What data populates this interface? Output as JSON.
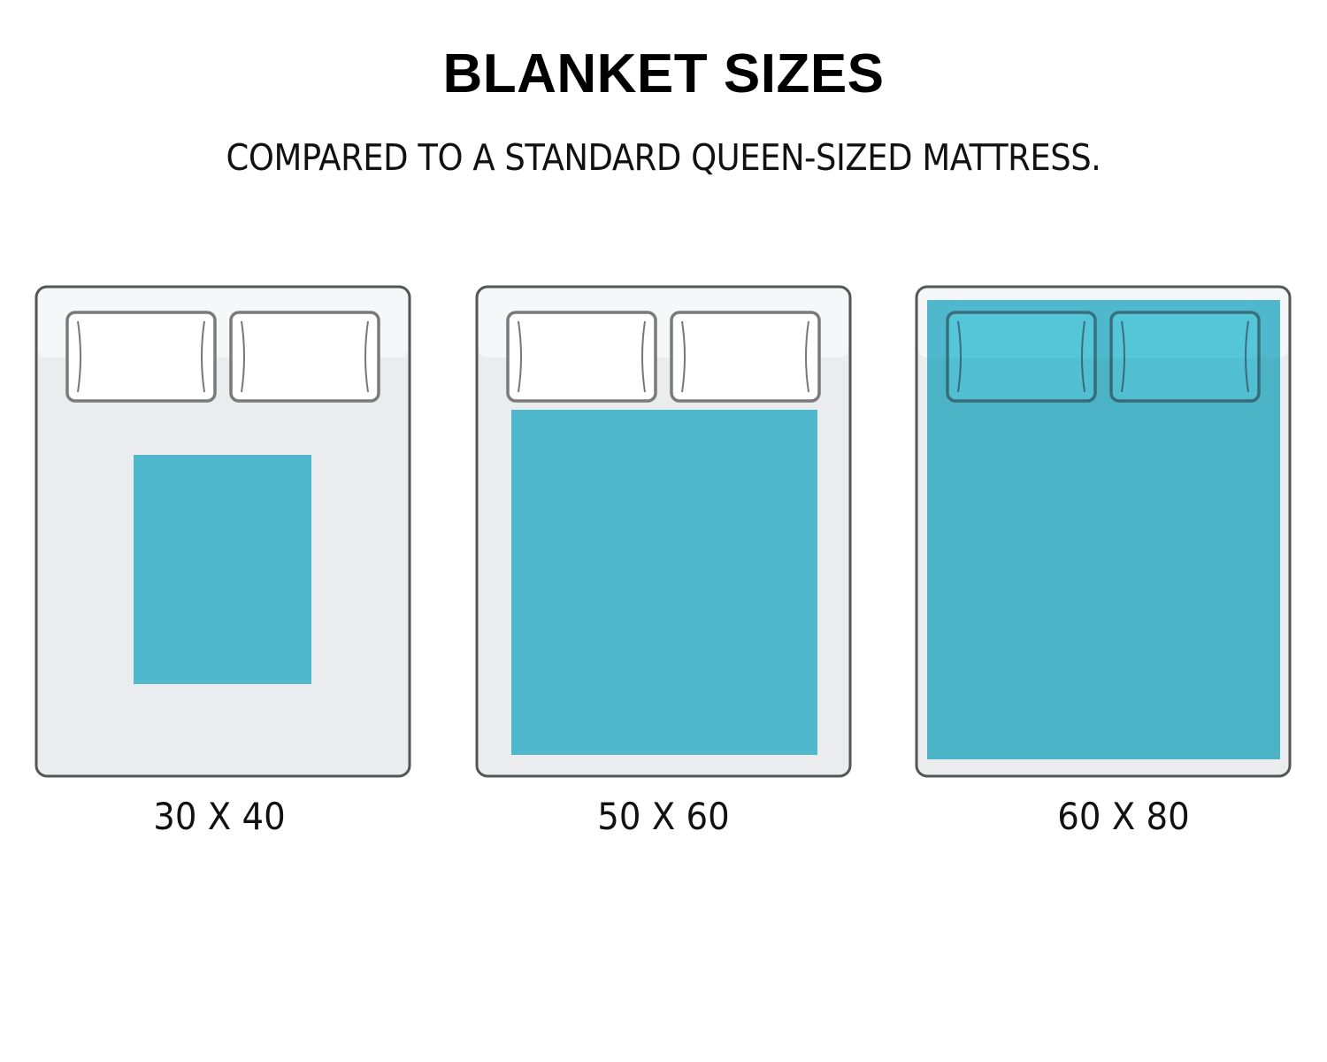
{
  "title": "BLANKET SIZES",
  "subtitle": "COMPARED TO A STANDARD QUEEN-SIZED MATTRESS.",
  "colors": {
    "blanket": "#4fb8cc",
    "pillow_on_blanket": "#55c5d8",
    "mattress": "#ebecee",
    "headboard": "#f6f7f8",
    "outline": "#555555"
  },
  "beds": [
    {
      "label": "30 X 40",
      "blanket_width_in": 30,
      "blanket_length_in": 40
    },
    {
      "label": "50 X 60",
      "blanket_width_in": 50,
      "blanket_length_in": 60
    },
    {
      "label": "60 X 80",
      "blanket_width_in": 60,
      "blanket_length_in": 80
    }
  ]
}
